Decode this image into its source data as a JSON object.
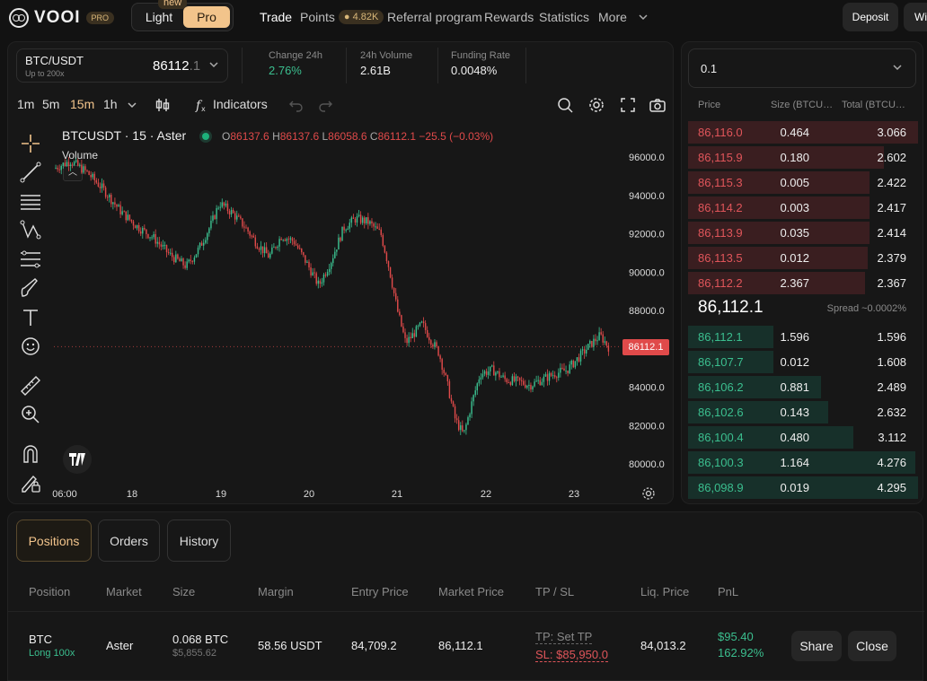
{
  "brand": {
    "name": "VOOI",
    "badge": "PRO"
  },
  "mode_toggle": {
    "light": "Light",
    "pro": "Pro",
    "new_badge": "new"
  },
  "nav": {
    "trade": "Trade",
    "points": "Points",
    "points_value": "4.82K",
    "referral": "Referral program",
    "rewards": "Rewards",
    "statistics": "Statistics",
    "more": "More"
  },
  "actions": {
    "deposit": "Deposit",
    "withdraw": "Withdraw"
  },
  "market": {
    "pair": "BTC/USDT",
    "leverage": "Up to 200x",
    "price_main": "86112",
    "price_dim": ".1"
  },
  "stats": [
    {
      "label": "Change 24h",
      "value": "2.76%"
    },
    {
      "label": "24h Volume",
      "value": "2.61B"
    },
    {
      "label": "Funding Rate",
      "value": "0.0048%"
    }
  ],
  "timeframes": [
    "1m",
    "5m",
    "15m",
    "1h"
  ],
  "active_timeframe": "15m",
  "toolbar": {
    "indicators": "Indicators"
  },
  "legend": {
    "symbol": "BTCUSDT · 15 · Aster",
    "o_label": "O",
    "o": "86137.6",
    "h_label": "H",
    "h": "86137.6",
    "l_label": "L",
    "l": "86058.6",
    "c_label": "C",
    "c": "86112.1",
    "change": "−25.5 (−0.03%)",
    "volume_label": "Volume"
  },
  "chart": {
    "y_ticks": [
      "96000.0",
      "94000.0",
      "92000.0",
      "90000.0",
      "88000.0",
      "86000.0",
      "84000.0",
      "82000.0",
      "80000.0"
    ],
    "x_ticks": [
      "06:00",
      "18",
      "19",
      "20",
      "21",
      "22",
      "23"
    ],
    "current_price_tag": "86112.1",
    "colors": {
      "up": "#3bbf8f",
      "down": "#e04a4a"
    }
  },
  "chart_data": {
    "type": "candlestick",
    "title": "BTCUSDT · 15 · Aster",
    "ylim": [
      79500,
      97000
    ],
    "x_ticks": [
      "06:00",
      "18",
      "19",
      "20",
      "21",
      "22",
      "23"
    ],
    "y_ticks": [
      96000,
      94000,
      92000,
      90000,
      88000,
      86000,
      84000,
      82000,
      80000
    ],
    "close_path": [
      [
        0,
        95400
      ],
      [
        0.2,
        95800
      ],
      [
        0.4,
        95200
      ],
      [
        0.6,
        94300
      ],
      [
        0.8,
        93200
      ],
      [
        1.0,
        92400
      ],
      [
        1.2,
        91800
      ],
      [
        1.4,
        90900
      ],
      [
        1.6,
        90300
      ],
      [
        1.75,
        91200
      ],
      [
        1.9,
        92500
      ],
      [
        2.0,
        93600
      ],
      [
        2.15,
        93100
      ],
      [
        2.3,
        92400
      ],
      [
        2.45,
        91500
      ],
      [
        2.6,
        90800
      ],
      [
        2.75,
        91900
      ],
      [
        2.9,
        91600
      ],
      [
        3.05,
        90500
      ],
      [
        3.2,
        89300
      ],
      [
        3.35,
        90600
      ],
      [
        3.5,
        92300
      ],
      [
        3.65,
        92800
      ],
      [
        3.8,
        92600
      ],
      [
        3.95,
        92000
      ],
      [
        4.05,
        90200
      ],
      [
        4.15,
        88000
      ],
      [
        4.25,
        86300
      ],
      [
        4.35,
        86800
      ],
      [
        4.45,
        87300
      ],
      [
        4.55,
        86500
      ],
      [
        4.65,
        85800
      ],
      [
        4.75,
        84200
      ],
      [
        4.85,
        82300
      ],
      [
        4.95,
        81500
      ],
      [
        5.05,
        83200
      ],
      [
        5.15,
        84700
      ],
      [
        5.3,
        84900
      ],
      [
        5.45,
        84400
      ],
      [
        5.6,
        84300
      ],
      [
        5.75,
        84100
      ],
      [
        5.9,
        84400
      ],
      [
        6.05,
        84700
      ],
      [
        6.2,
        84900
      ],
      [
        6.35,
        85600
      ],
      [
        6.5,
        86300
      ],
      [
        6.6,
        86700
      ],
      [
        6.7,
        86100
      ]
    ],
    "last_price": 86112.1,
    "ohlc_last": {
      "open": 86137.6,
      "high": 86137.6,
      "low": 86058.6,
      "close": 86112.1
    }
  },
  "orderbook": {
    "select_value": "0.1",
    "headers": {
      "price": "Price",
      "size": "Size (BTCUSDT)",
      "total": "Total (BTCUSDT)"
    },
    "asks": [
      {
        "price": "86,116.0",
        "size": "0.464",
        "total": "3.066",
        "depth": 1.0
      },
      {
        "price": "86,115.9",
        "size": "0.180",
        "total": "2.602",
        "depth": 0.85
      },
      {
        "price": "86,115.3",
        "size": "0.005",
        "total": "2.422",
        "depth": 0.79
      },
      {
        "price": "86,114.2",
        "size": "0.003",
        "total": "2.417",
        "depth": 0.79
      },
      {
        "price": "86,113.9",
        "size": "0.035",
        "total": "2.414",
        "depth": 0.79
      },
      {
        "price": "86,113.5",
        "size": "0.012",
        "total": "2.379",
        "depth": 0.78
      },
      {
        "price": "86,112.2",
        "size": "2.367",
        "total": "2.367",
        "depth": 0.77
      }
    ],
    "mid_price": "86,112.1",
    "spread": "Spread ~0.0002%",
    "bids": [
      {
        "price": "86,112.1",
        "size": "1.596",
        "total": "1.596",
        "depth": 0.37
      },
      {
        "price": "86,107.7",
        "size": "0.012",
        "total": "1.608",
        "depth": 0.37
      },
      {
        "price": "86,106.2",
        "size": "0.881",
        "total": "2.489",
        "depth": 0.58
      },
      {
        "price": "86,102.6",
        "size": "0.143",
        "total": "2.632",
        "depth": 0.61
      },
      {
        "price": "86,100.4",
        "size": "0.480",
        "total": "3.112",
        "depth": 0.72
      },
      {
        "price": "86,100.3",
        "size": "1.164",
        "total": "4.276",
        "depth": 0.99
      },
      {
        "price": "86,098.9",
        "size": "0.019",
        "total": "4.295",
        "depth": 1.0
      }
    ]
  },
  "positions": {
    "tabs": [
      "Positions",
      "Orders",
      "History"
    ],
    "headers": {
      "position": "Position",
      "market": "Market",
      "size": "Size",
      "margin": "Margin",
      "entry": "Entry Price",
      "mark": "Market Price",
      "tpsl": "TP / SL",
      "liq": "Liq. Price",
      "pnl": "PnL"
    },
    "row": {
      "asset": "BTC",
      "side": "Long 100x",
      "market": "Aster",
      "size": "0.068 BTC",
      "size_usd": "$5,855.62",
      "margin": "58.56 USDT",
      "entry": "84,709.2",
      "mark": "86,112.1",
      "tp": "TP: Set TP",
      "sl": "SL: $85,950.0",
      "liq": "84,013.2",
      "pnl": "$95.40",
      "pnl_pct": "162.92%",
      "share": "Share",
      "close": "Close"
    }
  }
}
